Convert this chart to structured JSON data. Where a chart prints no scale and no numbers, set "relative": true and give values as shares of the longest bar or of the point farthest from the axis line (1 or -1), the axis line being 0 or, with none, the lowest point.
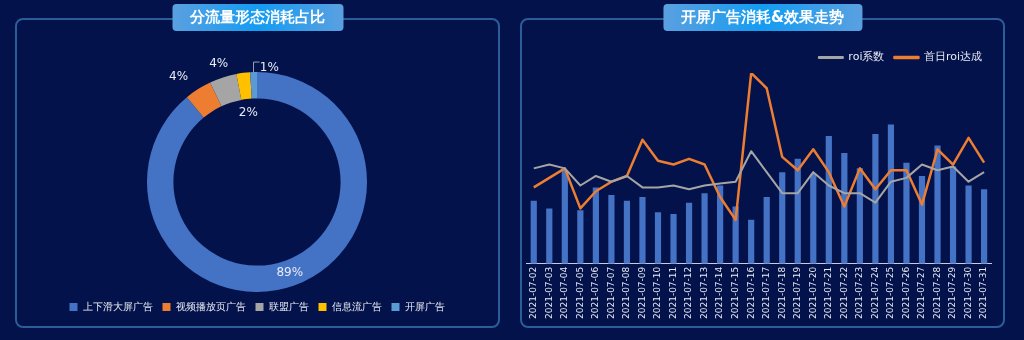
{
  "chart_data": [
    {
      "type": "donut",
      "title": "分流量形态消耗占比",
      "categories": [
        "上下滑大屏广告",
        "视频播放页广告",
        "联盟广告",
        "信息流广告",
        "开屏广告"
      ],
      "values": [
        89,
        4,
        4,
        2,
        1
      ],
      "colors": [
        "#4472c4",
        "#ed7d31",
        "#a5a5a5",
        "#ffc000",
        "#5b9bd5"
      ],
      "value_labels": [
        "89%",
        "4%",
        "4%",
        "2%",
        "1%"
      ],
      "legend": "bottom"
    },
    {
      "type": "bar",
      "title": "开屏广告消耗&效果走势",
      "relative": true,
      "legend": "top right",
      "grid": false,
      "categories": [
        "2021-07-02",
        "2021-07-03",
        "2021-07-04",
        "2021-07-05",
        "2021-07-06",
        "2021-07-07",
        "2021-07-08",
        "2021-07-09",
        "2021-07-10",
        "2021-07-11",
        "2021-07-12",
        "2021-07-13",
        "2021-07-14",
        "2021-07-15",
        "2021-07-16",
        "2021-07-17",
        "2021-07-18",
        "2021-07-19",
        "2021-07-20",
        "2021-07-21",
        "2021-07-22",
        "2021-07-23",
        "2021-07-24",
        "2021-07-25",
        "2021-07-26",
        "2021-07-27",
        "2021-07-28",
        "2021-07-29",
        "2021-07-30",
        "2021-07-31"
      ],
      "series": [
        {
          "type": "bar",
          "color": "#4472c4",
          "values": [
            0.33,
            0.29,
            0.49,
            0.28,
            0.4,
            0.36,
            0.33,
            0.35,
            0.27,
            0.26,
            0.32,
            0.37,
            0.41,
            0.3,
            0.23,
            0.35,
            0.48,
            0.55,
            0.47,
            0.67,
            0.58,
            0.5,
            0.68,
            0.73,
            0.53,
            0.46,
            0.62,
            0.51,
            0.41,
            0.39
          ]
        },
        {
          "type": "line",
          "name": "roi系数",
          "color": "#a5a5a5",
          "values": [
            0.5,
            0.52,
            0.5,
            0.41,
            0.46,
            0.43,
            0.46,
            0.4,
            0.4,
            0.41,
            0.39,
            0.41,
            0.42,
            0.43,
            0.59,
            0.48,
            0.37,
            0.37,
            0.48,
            0.41,
            0.37,
            0.37,
            0.32,
            0.43,
            0.45,
            0.52,
            0.49,
            0.51,
            0.43,
            0.48
          ]
        },
        {
          "type": "line",
          "name": "首日roi达成",
          "color": "#ed7d31",
          "values": [
            0.4,
            0.45,
            0.5,
            0.29,
            0.38,
            0.43,
            0.46,
            0.65,
            0.54,
            0.52,
            0.55,
            0.52,
            0.35,
            0.23,
            1,
            0.92,
            0.56,
            0.49,
            0.6,
            0.48,
            0.3,
            0.5,
            0.39,
            0.49,
            0.49,
            0.31,
            0.6,
            0.52,
            0.66,
            0.53
          ]
        }
      ]
    }
  ]
}
